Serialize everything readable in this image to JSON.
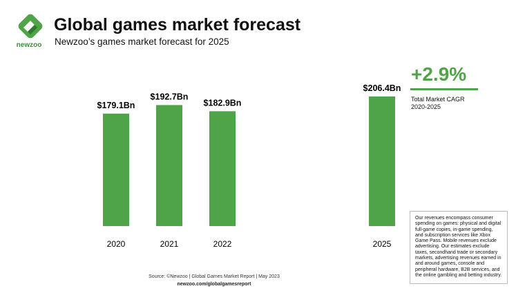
{
  "header": {
    "logo": "newzoo",
    "title": "Global games market forecast",
    "subtitle": "Newzoo’s games market forecast for 2025"
  },
  "chart_data": {
    "type": "bar",
    "categories": [
      "2020",
      "2021",
      "2022",
      null,
      null,
      "2025"
    ],
    "values": [
      179.1,
      192.7,
      182.9,
      null,
      null,
      206.4
    ],
    "value_labels": [
      "$179.1Bn",
      "$192.7Bn",
      "$182.9Bn",
      null,
      null,
      "$206.4Bn"
    ],
    "color": "#4fa447",
    "ylim": [
      0,
      225
    ]
  },
  "cagr": {
    "value": "+2.9%",
    "label": "Total Market CAGR",
    "period": "2020-2025"
  },
  "note": "Our revenues encompass consumer spending on games: physical and digital full-game copies, in-game spending, and subscription services like Xbox Game Pass. Mobile revenues exclude advertising. Our estimates exclude taxes, secondhand trade or secondary markets, advertising revenues earned in and around games, console and peripheral hardware, B2B services, and the online gambling and betting industry.",
  "footer": {
    "source": "Source: ©Newzoo | Global Games Market Report | May 2023",
    "url": "newzoo.com/globalgamesreport"
  }
}
